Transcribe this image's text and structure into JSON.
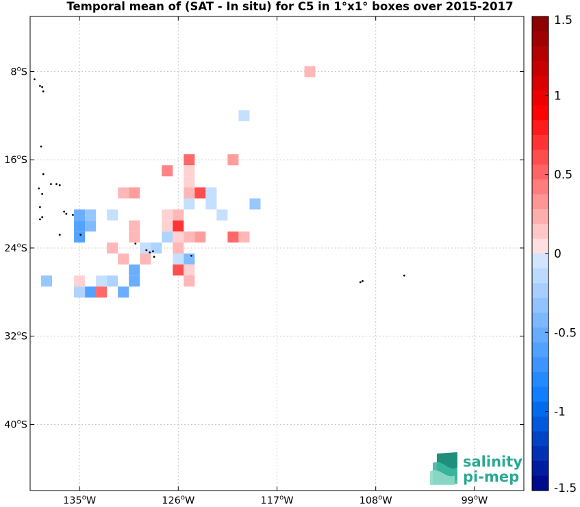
{
  "title": "Temporal mean of (SAT - In situ) for C5 in 1°x1° boxes over 2015-2017",
  "map": {
    "lon_range": [
      -139.5,
      -94.5
    ],
    "lat_range": [
      -46,
      -3
    ],
    "grid": true,
    "lon_ticks": [
      {
        "value": -135,
        "deg": "135",
        "hemi": "W"
      },
      {
        "value": -126,
        "deg": "126",
        "hemi": "W"
      },
      {
        "value": -117,
        "deg": "117",
        "hemi": "W"
      },
      {
        "value": -108,
        "deg": "108",
        "hemi": "W"
      },
      {
        "value": -99,
        "deg": "99",
        "hemi": "W"
      }
    ],
    "lat_ticks": [
      {
        "value": -8,
        "deg": "8",
        "hemi": "S"
      },
      {
        "value": -16,
        "deg": "16",
        "hemi": "S"
      },
      {
        "value": -24,
        "deg": "24",
        "hemi": "S"
      },
      {
        "value": -32,
        "deg": "32",
        "hemi": "S"
      },
      {
        "value": -40,
        "deg": "40",
        "hemi": "S"
      }
    ],
    "boxes": [
      {
        "lon": -114,
        "lat": -8,
        "v": 0.2
      },
      {
        "lon": -120,
        "lat": -12,
        "v": -0.1
      },
      {
        "lon": -125,
        "lat": -16,
        "v": 0.5
      },
      {
        "lon": -121,
        "lat": -16,
        "v": 0.3
      },
      {
        "lon": -127,
        "lat": -17,
        "v": 0.4
      },
      {
        "lon": -125,
        "lat": -17,
        "v": 0.1
      },
      {
        "lon": -125,
        "lat": -18,
        "v": 0.1
      },
      {
        "lon": -131,
        "lat": -19,
        "v": 0.2
      },
      {
        "lon": -130,
        "lat": -19,
        "v": 0.3
      },
      {
        "lon": -125,
        "lat": -19,
        "v": 0.2
      },
      {
        "lon": -124,
        "lat": -19,
        "v": 0.6
      },
      {
        "lon": -123,
        "lat": -19,
        "v": -0.1
      },
      {
        "lon": -125,
        "lat": -20,
        "v": -0.1
      },
      {
        "lon": -123,
        "lat": -20,
        "v": -0.1
      },
      {
        "lon": -119,
        "lat": -20,
        "v": -0.3
      },
      {
        "lon": -135,
        "lat": -21,
        "v": -0.5
      },
      {
        "lon": -134,
        "lat": -21,
        "v": -0.3
      },
      {
        "lon": -132,
        "lat": -21,
        "v": -0.1
      },
      {
        "lon": -127,
        "lat": -21,
        "v": 0.1
      },
      {
        "lon": -126,
        "lat": -21,
        "v": 0.2
      },
      {
        "lon": -122,
        "lat": -21,
        "v": -0.1
      },
      {
        "lon": -135,
        "lat": -22,
        "v": -0.6
      },
      {
        "lon": -134,
        "lat": -22,
        "v": -0.4
      },
      {
        "lon": -130,
        "lat": -22,
        "v": 0.2
      },
      {
        "lon": -127,
        "lat": -22,
        "v": 0.1
      },
      {
        "lon": -126,
        "lat": -22,
        "v": 0.7
      },
      {
        "lon": -135,
        "lat": -23,
        "v": -0.6
      },
      {
        "lon": -130,
        "lat": -23,
        "v": 0.2
      },
      {
        "lon": -127,
        "lat": -23,
        "v": -0.2
      },
      {
        "lon": -126,
        "lat": -23,
        "v": 0.1
      },
      {
        "lon": -125,
        "lat": -23,
        "v": 0.2
      },
      {
        "lon": -124,
        "lat": -23,
        "v": 0.3
      },
      {
        "lon": -121,
        "lat": -23,
        "v": 0.5
      },
      {
        "lon": -120,
        "lat": -23,
        "v": 0.2
      },
      {
        "lon": -132,
        "lat": -24,
        "v": 0.2
      },
      {
        "lon": -129,
        "lat": -24,
        "v": -0.1
      },
      {
        "lon": -128,
        "lat": -24,
        "v": -0.2
      },
      {
        "lon": -126,
        "lat": -24,
        "v": 0.2
      },
      {
        "lon": -131,
        "lat": -25,
        "v": 0.2
      },
      {
        "lon": -129,
        "lat": -25,
        "v": 0.2
      },
      {
        "lon": -126,
        "lat": -25,
        "v": -0.1
      },
      {
        "lon": -125,
        "lat": -25,
        "v": -0.4
      },
      {
        "lon": -130,
        "lat": -26,
        "v": -0.5
      },
      {
        "lon": -126,
        "lat": -26,
        "v": 0.6
      },
      {
        "lon": -125,
        "lat": -26,
        "v": 0.1
      },
      {
        "lon": -138,
        "lat": -27,
        "v": -0.3
      },
      {
        "lon": -135,
        "lat": -27,
        "v": 0.1
      },
      {
        "lon": -133,
        "lat": -27,
        "v": -0.1
      },
      {
        "lon": -132,
        "lat": -27,
        "v": -0.2
      },
      {
        "lon": -130,
        "lat": -27,
        "v": -0.5
      },
      {
        "lon": -125,
        "lat": -27,
        "v": 0.2
      },
      {
        "lon": -135,
        "lat": -28,
        "v": -0.2
      },
      {
        "lon": -134,
        "lat": -28,
        "v": -0.6
      },
      {
        "lon": -133,
        "lat": -28,
        "v": 0.5
      },
      {
        "lon": -131,
        "lat": -28,
        "v": -0.5
      }
    ],
    "land": [
      {
        "lon": -139.1,
        "lat": -8.7
      },
      {
        "lon": -138.6,
        "lat": -9.3
      },
      {
        "lon": -138.4,
        "lat": -9.4
      },
      {
        "lon": -138.3,
        "lat": -9.8
      },
      {
        "lon": -138.5,
        "lat": -14.8
      },
      {
        "lon": -138.3,
        "lat": -17.3
      },
      {
        "lon": -137.6,
        "lat": -18.2
      },
      {
        "lon": -137.1,
        "lat": -18.2
      },
      {
        "lon": -136.8,
        "lat": -18.3
      },
      {
        "lon": -138.7,
        "lat": -18.6
      },
      {
        "lon": -138.4,
        "lat": -19.1
      },
      {
        "lon": -138.6,
        "lat": -20.3
      },
      {
        "lon": -136.4,
        "lat": -20.7
      },
      {
        "lon": -136.2,
        "lat": -20.9
      },
      {
        "lon": -135.6,
        "lat": -21.0
      },
      {
        "lon": -138.4,
        "lat": -21.2
      },
      {
        "lon": -138.6,
        "lat": -21.4
      },
      {
        "lon": -134.9,
        "lat": -22.8
      },
      {
        "lon": -136.8,
        "lat": -22.8
      },
      {
        "lon": -128.3,
        "lat": -24.3
      },
      {
        "lon": -129.9,
        "lat": -23.6
      },
      {
        "lon": -128.6,
        "lat": -24.4
      },
      {
        "lon": -128.2,
        "lat": -24.8
      },
      {
        "lon": -124.8,
        "lat": -24.7
      },
      {
        "lon": -128.9,
        "lat": -24.2
      },
      {
        "lon": -109.4,
        "lat": -27.1
      },
      {
        "lon": -109.2,
        "lat": -27.0
      },
      {
        "lon": -105.4,
        "lat": -26.5
      }
    ]
  },
  "colorbar": {
    "min": -1.5,
    "max": 1.5,
    "steps": 32,
    "tick_values": [
      1.5,
      1,
      0.5,
      0,
      -0.5,
      -1,
      -1.5
    ],
    "tick_labels": [
      "1.5",
      "1",
      "0.5",
      "0",
      "-0.5",
      "-1",
      "-1.5"
    ]
  },
  "logo": {
    "line1": "salinity",
    "line2": "pi-mep"
  }
}
